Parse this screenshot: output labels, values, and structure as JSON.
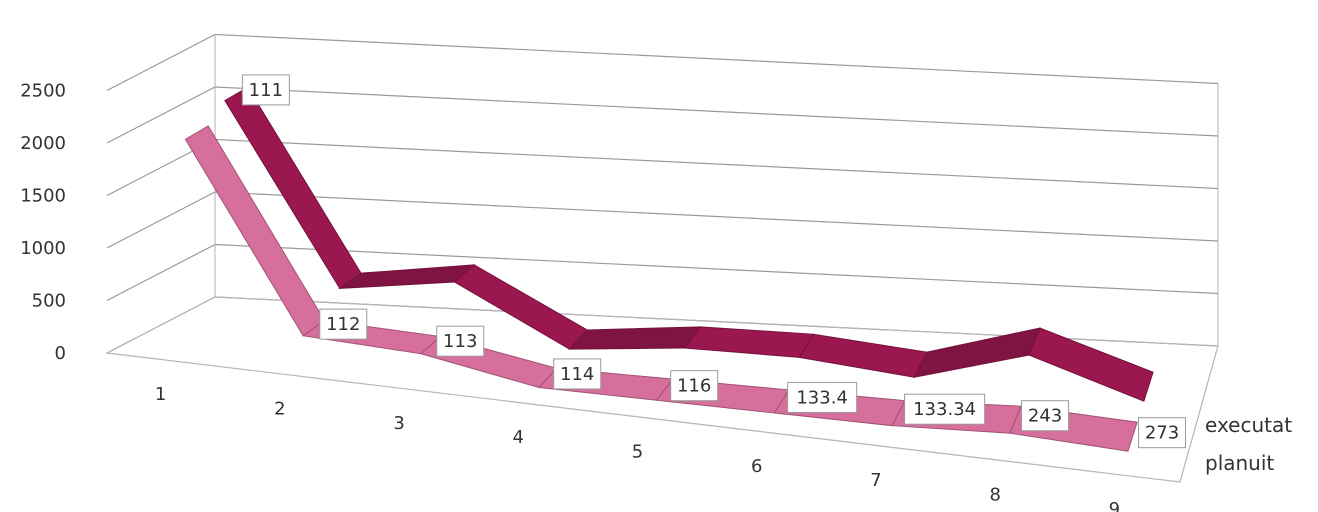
{
  "chart_data": {
    "type": "line",
    "title": "",
    "xlabel": "",
    "ylabel": "",
    "categories": [
      "1",
      "2",
      "3",
      "4",
      "5",
      "6",
      "7",
      "8",
      "9"
    ],
    "y_ticks": [
      "0",
      "500",
      "1000",
      "1500",
      "2000",
      "2500"
    ],
    "ylim": [
      0,
      2500
    ],
    "grid": true,
    "legend": "right",
    "series": [
      {
        "name": "planuit",
        "color": "#d66f9c",
        "values": [
          2000,
          250,
          200,
          0,
          0,
          0,
          0,
          50,
          0
        ],
        "data_labels": [
          "",
          "112",
          "113",
          "114",
          "116",
          "133.4",
          "133.34",
          "243",
          "273"
        ]
      },
      {
        "name": "executat",
        "color": "#9b1750",
        "values": [
          2150,
          450,
          600,
          50,
          150,
          150,
          50,
          350,
          0
        ],
        "data_labels": [
          "111",
          "",
          "",
          "",
          "",
          "",
          "",
          "",
          ""
        ]
      }
    ]
  }
}
